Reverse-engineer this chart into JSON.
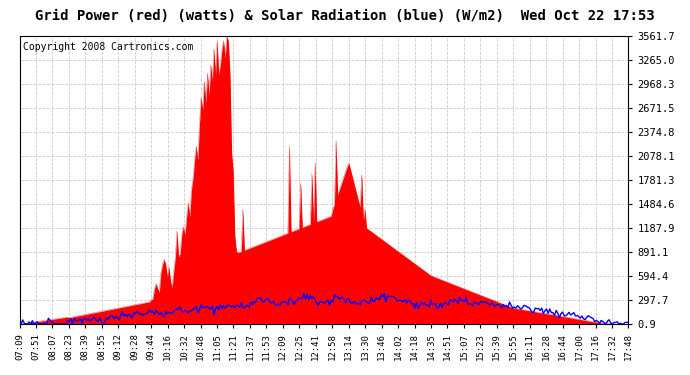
{
  "title": "Grid Power (red) (watts) & Solar Radiation (blue) (W/m2)  Wed Oct 22 17:53",
  "copyright": "Copyright 2008 Cartronics.com",
  "yticks": [
    0.9,
    297.7,
    594.4,
    891.1,
    1187.9,
    1484.6,
    1781.3,
    2078.1,
    2374.8,
    2671.5,
    2968.3,
    3265.0,
    3561.7
  ],
  "ymin": 0.9,
  "ymax": 3561.7,
  "xtick_labels": [
    "07:09",
    "07:51",
    "08:07",
    "08:23",
    "08:39",
    "08:55",
    "09:12",
    "09:28",
    "09:44",
    "10:16",
    "10:32",
    "10:48",
    "11:05",
    "11:21",
    "11:37",
    "11:53",
    "12:09",
    "12:25",
    "12:41",
    "12:58",
    "13:14",
    "13:30",
    "13:46",
    "14:02",
    "14:18",
    "14:35",
    "14:51",
    "15:07",
    "15:23",
    "15:39",
    "15:55",
    "16:11",
    "16:28",
    "16:44",
    "17:00",
    "17:16",
    "17:32",
    "17:48"
  ],
  "bg_color": "#ffffff",
  "plot_bg_color": "#ffffff",
  "grid_color": "#cccccc",
  "red_color": "#ff0000",
  "blue_color": "#0000ff",
  "title_fontsize": 10,
  "copyright_fontsize": 7
}
